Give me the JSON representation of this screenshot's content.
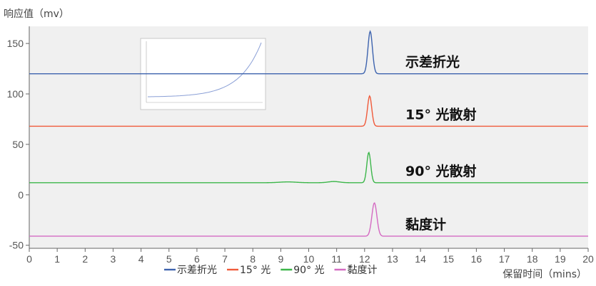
{
  "chart_data": {
    "type": "line",
    "ylabel": "响应值（mv）",
    "xlabel": "保留时间（mins）",
    "xlim": [
      0,
      20
    ],
    "ylim": [
      -53,
      167
    ],
    "x_ticks": [
      0,
      1,
      2,
      3,
      4,
      5,
      6,
      7,
      8,
      9,
      10,
      11,
      12,
      13,
      14,
      15,
      16,
      17,
      18,
      19,
      20
    ],
    "y_ticks": [
      -50,
      0,
      50,
      100,
      150
    ],
    "grid": false,
    "background": "#f0f0f0",
    "legend_position": "bottom-center",
    "series": [
      {
        "name": "示差折光",
        "color": "#3d63ae",
        "annotation": "示差折光",
        "baseline": 120,
        "peaks": [
          {
            "center": 12.2,
            "height": 42,
            "width": 0.08
          }
        ]
      },
      {
        "name": "15° 光",
        "color": "#f05a3a",
        "annotation": "15° 光散射",
        "baseline": 68,
        "peaks": [
          {
            "center": 12.18,
            "height": 30,
            "width": 0.075
          }
        ]
      },
      {
        "name": "90° 光",
        "color": "#3cb64a",
        "annotation": "90° 光散射",
        "baseline": 12,
        "peaks": [
          {
            "center": 9.25,
            "height": 0.8,
            "width": 0.3
          },
          {
            "center": 10.9,
            "height": 1.2,
            "width": 0.2
          },
          {
            "center": 12.15,
            "height": 30,
            "width": 0.07
          }
        ]
      },
      {
        "name": "黏度计",
        "color": "#d46ac2",
        "annotation": "黏度计",
        "baseline": -41,
        "peaks": [
          {
            "center": 12.35,
            "height": 33,
            "width": 0.09
          }
        ]
      }
    ]
  }
}
